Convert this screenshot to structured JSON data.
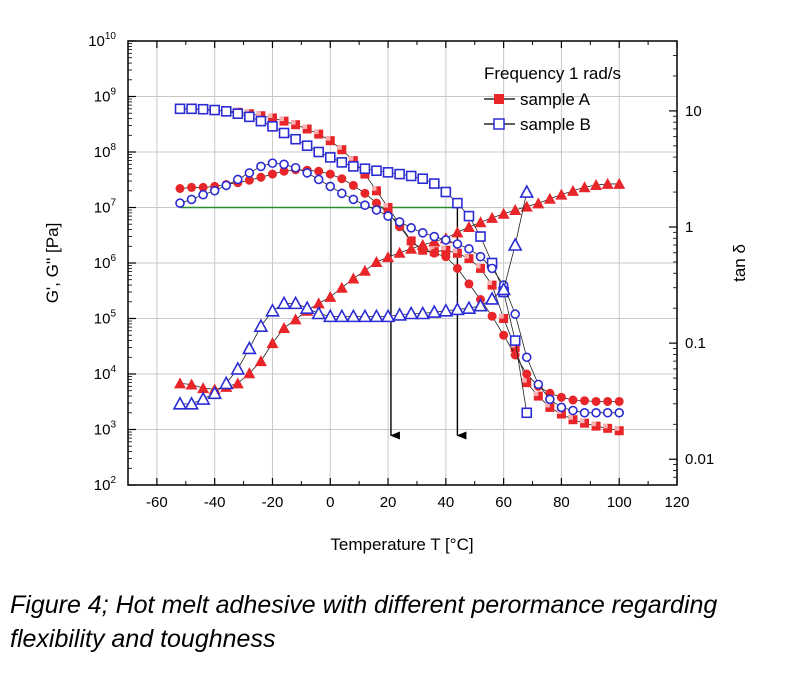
{
  "caption": "Figure 4; Hot melt adhesive with different perormance regarding flexibility and toughness",
  "chart_data": {
    "type": "scatter",
    "xlabel": "Temperature T [°C]",
    "ylabel_left": "G', G'' [Pa]",
    "ylabel_right": "tan δ",
    "xlim": [
      -70,
      120
    ],
    "ylim_left": [
      100,
      10000000000
    ],
    "ylim_right": [
      0.006,
      40
    ],
    "left_scale": "log",
    "right_scale": "log",
    "grid": true,
    "x_ticks": [
      -60,
      -40,
      -20,
      0,
      20,
      40,
      60,
      80,
      100,
      120
    ],
    "x_tick_labels": [
      "-60",
      "-40",
      "-20",
      "0",
      "20",
      "40",
      "60",
      "80",
      "100",
      "120"
    ],
    "y_left_ticks": [
      {
        "base": "10",
        "exp": "2"
      },
      {
        "base": "10",
        "exp": "3"
      },
      {
        "base": "10",
        "exp": "4"
      },
      {
        "base": "10",
        "exp": "5"
      },
      {
        "base": "10",
        "exp": "6"
      },
      {
        "base": "10",
        "exp": "7"
      },
      {
        "base": "10",
        "exp": "8"
      },
      {
        "base": "10",
        "exp": "9"
      },
      {
        "base": "10",
        "exp": "10"
      }
    ],
    "y_right_ticks": [
      {
        "value": 0.01,
        "label": "0.01"
      },
      {
        "value": 0.1,
        "label": "0.1"
      },
      {
        "value": 1,
        "label": "1"
      },
      {
        "value": 10,
        "label": "10"
      }
    ],
    "legend": {
      "title": "Frequency 1 rad/s",
      "placement": "top-right",
      "entries": [
        {
          "label": "sample A",
          "color": "#e8262a"
        },
        {
          "label": "sample B",
          "color": "#2b2bd6"
        }
      ]
    },
    "series": [
      {
        "name": "sample A",
        "quantity": "G'",
        "axis": "left",
        "marker": "square-half",
        "color": "#e8262a",
        "x": [
          -52,
          -48,
          -44,
          -40,
          -36,
          -32,
          -28,
          -24,
          -20,
          -16,
          -12,
          -8,
          -4,
          0,
          4,
          8,
          12,
          16,
          20,
          24,
          28,
          32,
          36,
          40,
          44,
          48,
          52,
          56,
          60,
          64,
          68,
          72,
          76,
          80,
          84,
          88,
          92,
          96,
          100
        ],
        "y": [
          600000000,
          600000000,
          580000000,
          560000000,
          550000000,
          520000000,
          490000000,
          450000000,
          410000000,
          360000000,
          310000000,
          260000000,
          210000000,
          160000000,
          110000000,
          70000000,
          40000000,
          20000000,
          10000000,
          5000000,
          2500000,
          1700000,
          1600000,
          1700000,
          1500000,
          1200000,
          800000,
          400000,
          100000,
          30000,
          7000,
          4000,
          2500,
          1900,
          1500,
          1300,
          1150,
          1050,
          950
        ]
      },
      {
        "name": "sample A",
        "quantity": "G''",
        "axis": "left",
        "marker": "circle",
        "color": "#e8262a",
        "x": [
          -52,
          -48,
          -44,
          -40,
          -36,
          -32,
          -28,
          -24,
          -20,
          -16,
          -12,
          -8,
          -4,
          0,
          4,
          8,
          12,
          16,
          20,
          24,
          28,
          32,
          36,
          40,
          44,
          48,
          52,
          56,
          60,
          64,
          68,
          72,
          76,
          80,
          84,
          88,
          92,
          96,
          100
        ],
        "y": [
          22000000,
          23000000,
          23000000,
          24000000,
          26000000,
          28000000,
          31000000,
          35000000,
          40000000,
          45000000,
          48000000,
          47000000,
          45000000,
          40000000,
          33000000,
          25000000,
          18000000,
          12000000,
          8000000,
          4500000,
          2500000,
          1700000,
          1500000,
          1300000,
          800000,
          420000,
          220000,
          110000,
          50000,
          22000,
          10000,
          6000,
          4500,
          3800,
          3400,
          3300,
          3200,
          3200,
          3200
        ]
      },
      {
        "name": "sample A",
        "quantity": "tan delta",
        "axis": "right",
        "marker": "triangle-filled",
        "color": "#e8262a",
        "x": [
          -52,
          -48,
          -44,
          -40,
          -36,
          -32,
          -28,
          -24,
          -20,
          -16,
          -12,
          -8,
          -4,
          0,
          4,
          8,
          12,
          16,
          20,
          24,
          28,
          32,
          36,
          40,
          44,
          48,
          52,
          56,
          60,
          64,
          68,
          72,
          76,
          80,
          84,
          88,
          92,
          96,
          100
        ],
        "y": [
          0.045,
          0.044,
          0.041,
          0.04,
          0.042,
          0.045,
          0.055,
          0.07,
          0.1,
          0.135,
          0.16,
          0.19,
          0.22,
          0.25,
          0.3,
          0.36,
          0.42,
          0.5,
          0.55,
          0.6,
          0.65,
          0.7,
          0.75,
          0.8,
          0.9,
          1.0,
          1.1,
          1.2,
          1.3,
          1.4,
          1.5,
          1.6,
          1.75,
          1.9,
          2.05,
          2.2,
          2.3,
          2.35,
          2.35
        ]
      },
      {
        "name": "sample B",
        "quantity": "G'",
        "axis": "left",
        "marker": "square-open",
        "color": "#2b2bd6",
        "x": [
          -52,
          -48,
          -44,
          -40,
          -36,
          -32,
          -28,
          -24,
          -20,
          -16,
          -12,
          -8,
          -4,
          0,
          4,
          8,
          12,
          16,
          20,
          24,
          28,
          32,
          36,
          40,
          44,
          48,
          52,
          56,
          60,
          64,
          68
        ],
        "y": [
          600000000,
          600000000,
          590000000,
          570000000,
          540000000,
          490000000,
          430000000,
          360000000,
          290000000,
          220000000,
          170000000,
          130000000,
          100000000,
          80000000,
          65000000,
          55000000,
          50000000,
          46000000,
          43000000,
          40000000,
          37000000,
          33000000,
          27000000,
          19000000,
          12000000,
          7000000,
          3000000,
          1000000,
          300000,
          40000,
          2000
        ]
      },
      {
        "name": "sample B",
        "quantity": "G''",
        "axis": "left",
        "marker": "circle-open",
        "color": "#2b2bd6",
        "x": [
          -52,
          -48,
          -44,
          -40,
          -36,
          -32,
          -28,
          -24,
          -20,
          -16,
          -12,
          -8,
          -4,
          0,
          4,
          8,
          12,
          16,
          20,
          24,
          28,
          32,
          36,
          40,
          44,
          48,
          52,
          56,
          60,
          64,
          68,
          72,
          76,
          80,
          84,
          88,
          92,
          96,
          100
        ],
        "y": [
          12000000,
          14000000,
          17000000,
          20000000,
          25000000,
          32000000,
          42000000,
          55000000,
          63000000,
          60000000,
          52000000,
          42000000,
          32000000,
          24000000,
          18000000,
          14000000,
          11000000,
          9000000,
          7000000,
          5500000,
          4300000,
          3500000,
          3000000,
          2600000,
          2200000,
          1800000,
          1300000,
          800000,
          400000,
          120000,
          20000,
          6500,
          3500,
          2500,
          2200,
          2000,
          2000,
          2000,
          2000
        ]
      },
      {
        "name": "sample B",
        "quantity": "tan delta",
        "axis": "right",
        "marker": "triangle-open",
        "color": "#2b2bd6",
        "x": [
          -52,
          -48,
          -44,
          -40,
          -36,
          -32,
          -28,
          -24,
          -20,
          -16,
          -12,
          -8,
          -4,
          0,
          4,
          8,
          12,
          16,
          20,
          24,
          28,
          32,
          36,
          40,
          44,
          48,
          52,
          56,
          60,
          64,
          68
        ],
        "y": [
          0.03,
          0.03,
          0.033,
          0.037,
          0.045,
          0.06,
          0.09,
          0.14,
          0.19,
          0.22,
          0.22,
          0.2,
          0.18,
          0.17,
          0.17,
          0.17,
          0.17,
          0.17,
          0.17,
          0.175,
          0.18,
          0.18,
          0.185,
          0.19,
          0.195,
          0.2,
          0.21,
          0.24,
          0.29,
          0.7,
          2.0
        ]
      }
    ],
    "annotations": [
      {
        "kind": "reference-line",
        "color": "#2e8b2e",
        "x": [
          -52,
          44
        ],
        "y": 10000000
      },
      {
        "kind": "arrow",
        "color": "#000000",
        "x": 21,
        "y_from": 10000000,
        "y_to": 1000
      },
      {
        "kind": "arrow",
        "color": "#000000",
        "x": 44,
        "y_from": 10000000,
        "y_to": 1000
      }
    ]
  }
}
